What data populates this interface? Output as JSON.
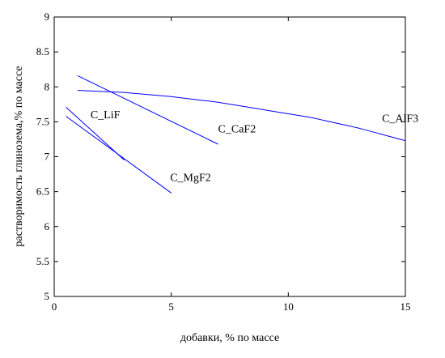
{
  "chart_data": {
    "type": "line",
    "title": "",
    "xlabel": "добавки, % по массе",
    "ylabel": "растворимость глинозема,% по массе",
    "xlim": [
      0,
      15
    ],
    "ylim": [
      5,
      9
    ],
    "xticks": [
      0,
      5,
      10,
      15
    ],
    "yticks": [
      5,
      5.5,
      6,
      6.5,
      7,
      7.5,
      8,
      8.5,
      9
    ],
    "xtick_labels": [
      "0",
      "5",
      "10",
      "15"
    ],
    "ytick_labels": [
      "5",
      "5.5",
      "6",
      "6.5",
      "7",
      "7.5",
      "8",
      "8.5",
      "9"
    ],
    "grid": false,
    "line_color": "#0000ff",
    "series": [
      {
        "label": "C_AlF3",
        "x": [
          1,
          3,
          5,
          7,
          9,
          11,
          13,
          15
        ],
        "y": [
          7.95,
          7.92,
          7.86,
          7.78,
          7.67,
          7.56,
          7.41,
          7.23
        ]
      },
      {
        "label": "C_CaF2",
        "x": [
          1,
          7
        ],
        "y": [
          8.16,
          7.18
        ]
      },
      {
        "label": "C_LiF",
        "x": [
          0.5,
          3
        ],
        "y": [
          7.71,
          6.95
        ]
      },
      {
        "label": "C_MgF2",
        "x": [
          0.5,
          5
        ],
        "y": [
          7.58,
          6.48
        ]
      }
    ],
    "annotations": [
      {
        "text": "C_LiF",
        "x": 1.55,
        "y": 7.55
      },
      {
        "text": "C_CaF2",
        "x": 7.0,
        "y": 7.35
      },
      {
        "text": "C_AlF3",
        "x": 14.0,
        "y": 7.5
      },
      {
        "text": "C_MgF2",
        "x": 4.95,
        "y": 6.65
      }
    ]
  }
}
